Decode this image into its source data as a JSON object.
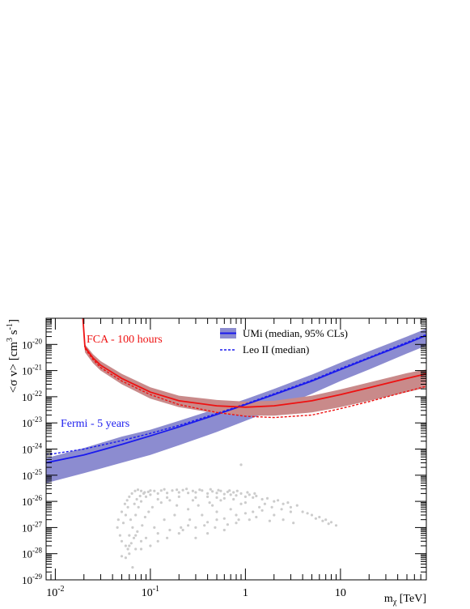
{
  "chart_data": {
    "type": "line",
    "xscale": "log",
    "yscale": "log",
    "xlim": [
      0.008,
      80
    ],
    "ylim": [
      1e-29,
      1e-19
    ],
    "xlabel": "m",
    "xlabel_sub": "χ",
    "xlabel_unit": "[TeV]",
    "ylabel": "<σ v> [cm",
    "ylabel_sup": "3",
    "ylabel_mid": " s",
    "ylabel_sup2": "-1",
    "ylabel_end": "]",
    "x_ticks": [
      {
        "value": 0.01,
        "base": "10",
        "exp": "-2"
      },
      {
        "value": 0.1,
        "base": "10",
        "exp": "-1"
      },
      {
        "value": 1,
        "base": "1",
        "exp": ""
      },
      {
        "value": 10,
        "base": "10",
        "exp": ""
      }
    ],
    "y_ticks": [
      {
        "value": 1e-20,
        "base": "10",
        "exp": "-20"
      },
      {
        "value": 1e-21,
        "base": "10",
        "exp": "-21"
      },
      {
        "value": 1e-22,
        "base": "10",
        "exp": "-22"
      },
      {
        "value": 1e-23,
        "base": "10",
        "exp": "-23"
      },
      {
        "value": 1e-24,
        "base": "10",
        "exp": "-24"
      },
      {
        "value": 1e-25,
        "base": "10",
        "exp": "-25"
      },
      {
        "value": 1e-26,
        "base": "10",
        "exp": "-26"
      },
      {
        "value": 1e-27,
        "base": "10",
        "exp": "-27"
      },
      {
        "value": 1e-28,
        "base": "10",
        "exp": "-28"
      },
      {
        "value": 1e-29,
        "base": "10",
        "exp": "-29"
      }
    ],
    "legend": {
      "position": "top-right",
      "entries": [
        {
          "label": "UMi (median, 95% CLs)",
          "style": "band-line"
        },
        {
          "label": "Leo II (median)",
          "style": "dashed"
        }
      ]
    },
    "annotations": [
      {
        "text": "FCA - 100 hours",
        "x": 0.025,
        "y": 3e-20,
        "color": "#ee1111"
      },
      {
        "text": "Fermi - 5 years",
        "x": 0.0115,
        "y": 4.5e-24,
        "color": "#2020ee"
      }
    ],
    "series": [
      {
        "name": "UMi (median, 95% CLs)",
        "instrument": "Fermi - 5 years",
        "color": "#1a1aee",
        "band_color": "#8c8cd0",
        "x": [
          0.008,
          0.02,
          0.05,
          0.1,
          0.2,
          0.5,
          1,
          2,
          5,
          10,
          20,
          50,
          80
        ],
        "median": [
          3e-25,
          6e-25,
          1.5e-24,
          3.2e-24,
          7e-24,
          2.1e-23,
          5e-23,
          1.2e-22,
          4e-22,
          1.1e-21,
          3e-21,
          1.1e-20,
          2.2e-20
        ],
        "upper": [
          4.5e-25,
          1.1e-24,
          3e-24,
          5.5e-24,
          1.2e-23,
          3.5e-23,
          8e-23,
          2e-22,
          7e-22,
          2e-21,
          5.5e-21,
          2e-20,
          4e-20
        ],
        "lower": [
          5e-26,
          1.2e-25,
          3e-25,
          6e-25,
          1.4e-24,
          4.5e-24,
          1.2e-23,
          3.2e-23,
          1.3e-22,
          4e-22,
          1.1e-21,
          4.5e-21,
          9e-21
        ]
      },
      {
        "name": "Leo II (median)",
        "instrument": "Fermi - 5 years",
        "color": "#1a1aee",
        "dashed": true,
        "x": [
          0.008,
          0.02,
          0.05,
          0.1,
          0.2,
          0.5,
          1,
          2,
          5,
          10,
          20,
          50,
          80
        ],
        "values": [
          6e-25,
          1e-24,
          2.1e-24,
          4e-24,
          8e-24,
          2.3e-23,
          5.3e-23,
          1.3e-22,
          4.3e-22,
          1.2e-21,
          3.2e-21,
          1.2e-20,
          2.4e-20
        ]
      },
      {
        "name": "UMi (median, 95% CLs)",
        "instrument": "FCA - 100 hours",
        "color": "#ee1111",
        "band_color": "#c98a8a",
        "x": [
          0.0195,
          0.0205,
          0.025,
          0.03,
          0.05,
          0.1,
          0.2,
          0.5,
          1,
          2,
          5,
          10,
          20,
          50,
          80
        ],
        "median": [
          1e-19,
          8e-21,
          3e-21,
          1.6e-21,
          5e-22,
          1.5e-22,
          7e-23,
          4.5e-23,
          4e-23,
          4.5e-23,
          7e-23,
          1.2e-22,
          2.2e-22,
          5e-22,
          7.5e-22
        ],
        "upper": [
          1e-19,
          1e-20,
          4.2e-21,
          2.3e-21,
          7.5e-22,
          2.3e-22,
          1.1e-22,
          7.5e-23,
          6.5e-23,
          7e-23,
          1.1e-22,
          1.9e-22,
          3.5e-22,
          8e-22,
          1.1e-21
        ],
        "lower": [
          1e-19,
          5e-21,
          1.9e-21,
          1e-21,
          3e-22,
          8.5e-23,
          4e-23,
          2.3e-23,
          1.9e-23,
          1.9e-23,
          2.5e-23,
          4e-23,
          7e-23,
          1.5e-22,
          2.2e-22
        ]
      },
      {
        "name": "Leo II (median)",
        "instrument": "FCA - 100 hours",
        "color": "#ee1111",
        "dashed": true,
        "x": [
          0.0205,
          0.025,
          0.03,
          0.05,
          0.1,
          0.2,
          0.5,
          1,
          2,
          5,
          10,
          20,
          50,
          80
        ],
        "values": [
          7e-21,
          2.6e-21,
          1.3e-21,
          4e-22,
          1.2e-22,
          5e-23,
          2.5e-23,
          1.8e-23,
          1.6e-23,
          2e-23,
          3.5e-23,
          6.5e-23,
          1.6e-22,
          2.5e-22
        ]
      }
    ],
    "scatter": {
      "color": "#cccccc",
      "points": [
        [
          0.05,
          8e-29
        ],
        [
          0.055,
          2e-28
        ],
        [
          0.06,
          5e-28
        ],
        [
          0.065,
          1e-27
        ],
        [
          0.07,
          3e-27
        ],
        [
          0.075,
          6e-27
        ],
        [
          0.08,
          1e-26
        ],
        [
          0.09,
          1.5e-26
        ],
        [
          0.1,
          1.8e-26
        ],
        [
          0.12,
          2e-26
        ],
        [
          0.15,
          2.1e-26
        ],
        [
          0.2,
          2.2e-26
        ],
        [
          0.25,
          2.1e-26
        ],
        [
          0.3,
          2.2e-26
        ],
        [
          0.4,
          2e-26
        ],
        [
          0.5,
          2.1e-26
        ],
        [
          0.6,
          1.9e-26
        ],
        [
          0.7,
          1.8e-26
        ],
        [
          0.8,
          1.7e-26
        ],
        [
          1.0,
          1.5e-26
        ],
        [
          1.2,
          1.4e-26
        ],
        [
          1.5,
          1.2e-26
        ],
        [
          2.0,
          1e-26
        ],
        [
          2.5,
          8e-27
        ],
        [
          3.0,
          6e-27
        ],
        [
          4.0,
          4e-27
        ],
        [
          5.0,
          3e-27
        ],
        [
          6.0,
          2.5e-27
        ],
        [
          7.0,
          2e-27
        ],
        [
          8.0,
          1.6e-27
        ],
        [
          0.05,
          3e-28
        ],
        [
          0.06,
          2e-28
        ],
        [
          0.07,
          1.5e-28
        ],
        [
          0.08,
          1.5e-28
        ],
        [
          0.1,
          2e-28
        ],
        [
          0.12,
          3e-28
        ],
        [
          0.15,
          4e-28
        ],
        [
          0.2,
          6e-28
        ],
        [
          0.3,
          1e-27
        ],
        [
          0.5,
          2e-27
        ],
        [
          0.8,
          3e-27
        ],
        [
          1.2,
          4e-27
        ],
        [
          0.06,
          1e-28
        ],
        [
          0.065,
          3e-29
        ],
        [
          0.07,
          5e-28
        ],
        [
          0.08,
          3e-28
        ],
        [
          0.09,
          4e-28
        ],
        [
          0.12,
          6e-28
        ],
        [
          0.16,
          8e-28
        ],
        [
          0.25,
          1.2e-27
        ],
        [
          0.4,
          1.6e-27
        ],
        [
          0.6,
          2.2e-27
        ],
        [
          1.0,
          3.5e-27
        ],
        [
          1.5,
          4.5e-27
        ],
        [
          0.9,
          2.5e-25
        ],
        [
          0.045,
          1e-27
        ],
        [
          0.048,
          5e-28
        ],
        [
          0.052,
          1.5e-27
        ],
        [
          0.055,
          3e-27
        ],
        [
          0.058,
          6e-27
        ],
        [
          0.062,
          2e-27
        ],
        [
          0.068,
          8e-27
        ],
        [
          0.072,
          1.2e-26
        ],
        [
          0.078,
          1.6e-26
        ],
        [
          0.085,
          2e-26
        ],
        [
          0.095,
          2.3e-26
        ],
        [
          0.11,
          2.5e-26
        ],
        [
          0.13,
          2.6e-26
        ],
        [
          0.17,
          2.6e-26
        ],
        [
          0.22,
          2.7e-26
        ],
        [
          0.28,
          2.5e-26
        ],
        [
          0.35,
          2.6e-26
        ],
        [
          0.45,
          2.4e-26
        ],
        [
          0.55,
          2.5e-26
        ],
        [
          0.65,
          2.3e-26
        ],
        [
          0.75,
          2.2e-26
        ],
        [
          0.9,
          2e-26
        ],
        [
          1.1,
          1.8e-26
        ],
        [
          1.3,
          1.6e-26
        ],
        [
          1.7,
          1.3e-26
        ],
        [
          2.2,
          1.1e-26
        ],
        [
          2.8,
          9e-27
        ],
        [
          3.5,
          7e-27
        ],
        [
          0.2,
          1.5e-26
        ],
        [
          0.3,
          1.4e-26
        ],
        [
          0.4,
          1.5e-26
        ],
        [
          0.5,
          1.4e-26
        ],
        [
          0.6,
          1.3e-26
        ],
        [
          0.15,
          1.4e-26
        ],
        [
          0.12,
          1.2e-26
        ],
        [
          0.25,
          5e-27
        ],
        [
          0.35,
          3e-27
        ],
        [
          0.45,
          7e-27
        ],
        [
          0.7,
          5e-27
        ],
        [
          0.9,
          8e-27
        ],
        [
          1.4,
          6e-27
        ],
        [
          2.0,
          3e-27
        ],
        [
          2.5,
          2e-27
        ],
        [
          3.2,
          1.5e-27
        ],
        [
          0.18,
          3e-27
        ],
        [
          0.14,
          2e-27
        ],
        [
          0.11,
          1e-27
        ],
        [
          0.22,
          8e-28
        ],
        [
          0.3,
          4e-28
        ],
        [
          0.4,
          6e-28
        ],
        [
          0.6,
          8e-28
        ],
        [
          0.8,
          1.5e-27
        ],
        [
          1.1,
          2e-27
        ],
        [
          0.5,
          4e-27
        ],
        [
          0.32,
          7e-27
        ],
        [
          0.28,
          1.1e-26
        ],
        [
          0.42,
          9e-27
        ],
        [
          0.55,
          1.1e-26
        ],
        [
          0.75,
          1.2e-26
        ],
        [
          1.0,
          9e-27
        ],
        [
          1.6,
          8e-27
        ],
        [
          1.9,
          6e-27
        ],
        [
          2.4,
          5e-27
        ],
        [
          3.0,
          4e-27
        ],
        [
          4.5,
          3.5e-27
        ],
        [
          5.5,
          2.2e-27
        ],
        [
          6.5,
          1.8e-27
        ],
        [
          7.5,
          1.4e-27
        ],
        [
          9.0,
          1.2e-27
        ],
        [
          0.055,
          7e-29
        ],
        [
          0.058,
          1.5e-28
        ],
        [
          0.063,
          2.5e-28
        ],
        [
          0.067,
          4e-28
        ],
        [
          0.073,
          7e-28
        ],
        [
          0.082,
          1.2e-27
        ],
        [
          0.088,
          2.5e-27
        ],
        [
          0.096,
          4e-27
        ],
        [
          0.105,
          6e-27
        ],
        [
          0.13,
          9e-27
        ],
        [
          0.16,
          1.1e-26
        ],
        [
          0.19,
          7e-27
        ],
        [
          0.21,
          1e-27
        ],
        [
          0.26,
          2e-27
        ],
        [
          0.37,
          1.2e-27
        ],
        [
          0.48,
          1e-27
        ],
        [
          0.65,
          1.3e-27
        ],
        [
          0.85,
          2e-27
        ],
        [
          1.3,
          2.5e-27
        ],
        [
          1.8,
          1.8e-27
        ],
        [
          0.046,
          2e-27
        ],
        [
          0.05,
          4e-27
        ],
        [
          0.054,
          8e-27
        ],
        [
          0.057,
          1.1e-26
        ],
        [
          0.06,
          1.5e-26
        ],
        [
          0.064,
          2e-26
        ],
        [
          0.069,
          2.5e-26
        ],
        [
          0.074,
          2.8e-26
        ],
        [
          0.08,
          2.5e-26
        ],
        [
          0.087,
          2.2e-26
        ],
        [
          0.1,
          2.6e-26
        ],
        [
          0.14,
          2.9e-26
        ],
        [
          0.19,
          2.8e-26
        ],
        [
          0.24,
          3e-26
        ],
        [
          0.33,
          2.8e-26
        ],
        [
          0.43,
          2.9e-26
        ],
        [
          0.52,
          2.7e-26
        ],
        [
          0.68,
          2.6e-26
        ],
        [
          0.82,
          2.5e-26
        ],
        [
          1.05,
          2.2e-26
        ],
        [
          1.25,
          2e-26
        ]
      ]
    }
  }
}
